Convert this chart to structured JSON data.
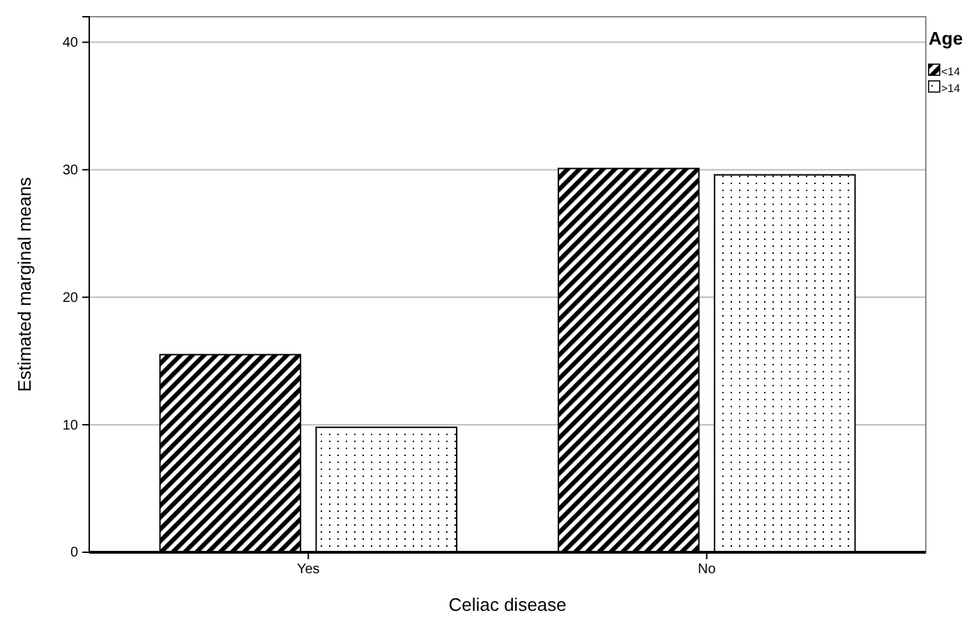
{
  "chart_data": {
    "type": "bar",
    "xlabel": "Celiac disease",
    "ylabel": "Estimated marginal means",
    "legend_title": "Age",
    "categories": [
      "Yes",
      "No"
    ],
    "series": [
      {
        "name": "<14",
        "color": "#000000",
        "values": [
          15.5,
          30.1
        ]
      },
      {
        "name": ">14",
        "color": "#000000",
        "values": [
          9.8,
          29.6
        ]
      }
    ],
    "ylim": [
      0,
      42
    ],
    "yticks": [
      0,
      10,
      20,
      30,
      40
    ],
    "grid": "y",
    "legend": "top right"
  }
}
